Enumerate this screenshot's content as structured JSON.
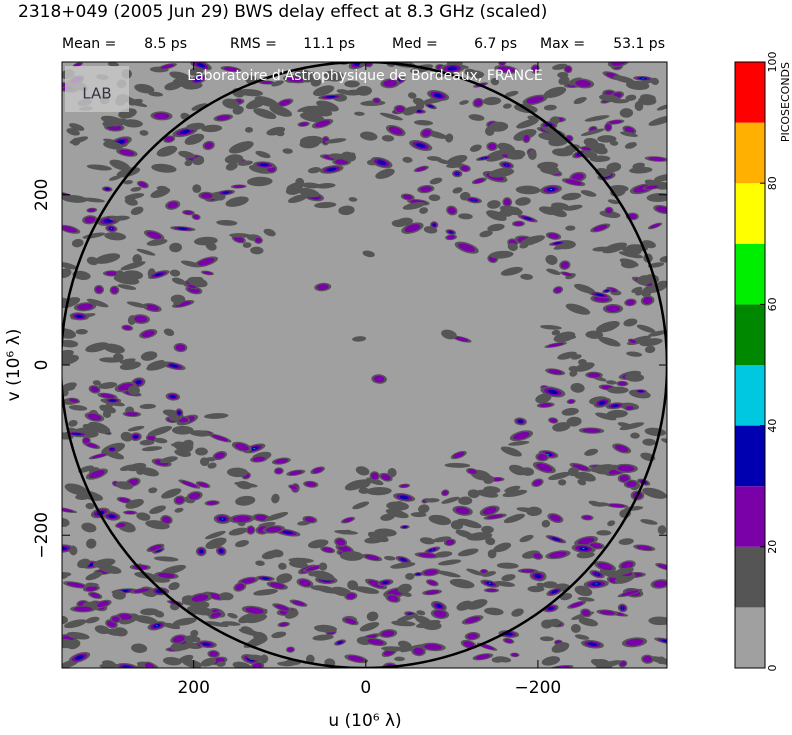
{
  "chart_data": {
    "type": "uvmap",
    "title": "2318+049  (2005 Jun 29)    BWS delay effect at  8.3 GHz (scaled)",
    "stats": [
      {
        "name": "Mean =",
        "value_label": "8.5 ps"
      },
      {
        "name": "RMS =",
        "value_label": "11.1 ps"
      },
      {
        "name": "Med =",
        "value_label": "6.7 ps"
      },
      {
        "name": "Max =",
        "value_label": "53.1 ps"
      }
    ],
    "watermark": "Laboratoire d'Astrophysique de Bordeaux, FRANCE",
    "logo": "LAB",
    "xlabel": "u  (10⁶ λ)",
    "ylabel": "v  (10⁶ λ)",
    "xlim": [
      353,
      -350
    ],
    "ylim": [
      -356,
      356
    ],
    "xticks": [
      200,
      0,
      {
        "value": -200,
        "label": "−200"
      }
    ],
    "yticks": [
      {
        "value": -200,
        "label": "−200"
      },
      0,
      200
    ],
    "colorbar": {
      "label": "PICOSECONDS",
      "lim": [
        0,
        100
      ],
      "bins": [
        0,
        10,
        20,
        30,
        40,
        50,
        60,
        70,
        80,
        90,
        100
      ],
      "colors": [
        "#a0a0a0",
        "#555555",
        "#7a00a8",
        "#0000b0",
        "#00c8e0",
        "#008800",
        "#00ee00",
        "#ffff00",
        "#ffb000",
        "#ff0000"
      ],
      "ticks": [
        0,
        20,
        40,
        60,
        80,
        100
      ]
    }
  }
}
